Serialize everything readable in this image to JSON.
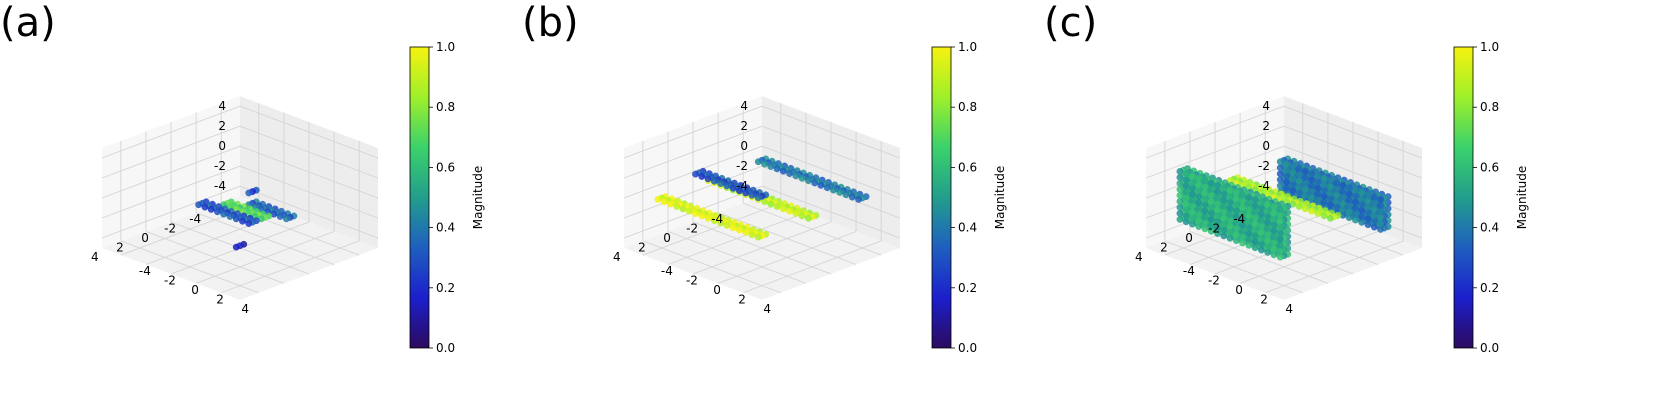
{
  "panels": [
    {
      "label": "(a)"
    },
    {
      "label": "(b)"
    },
    {
      "label": "(c)"
    }
  ],
  "colorbar": {
    "label": "Magnitude",
    "ticks": [
      "0.0",
      "0.2",
      "0.4",
      "0.6",
      "0.8",
      "1.0"
    ],
    "colors": [
      "#2c0a5e",
      "#1b1fcc",
      "#1f5fbf",
      "#229e8c",
      "#3bd16b",
      "#9ef02a",
      "#f6f20f"
    ]
  },
  "chart_data": [
    {
      "type": "scatter",
      "title": "(a)",
      "xlim": [
        -5,
        5
      ],
      "ylim": [
        -5,
        5
      ],
      "zlim": [
        -5,
        5
      ],
      "x_ticks": [
        "-4",
        "-2",
        "0",
        "2",
        "4"
      ],
      "y_ticks": [
        "-4",
        "-2",
        "0",
        "2",
        "4"
      ],
      "z_ticks": [
        "4",
        "2",
        "0",
        "-2",
        "-4"
      ],
      "colorbar_label": "Magnitude",
      "clim": [
        0,
        1
      ],
      "series": [
        {
          "x": 1,
          "y_range": [
            -2,
            2
          ],
          "z": -1,
          "magnitude": 0.3
        },
        {
          "x": 0,
          "y_range": [
            -1,
            2
          ],
          "z": -1,
          "magnitude": 0.7
        },
        {
          "x": -1,
          "y_range": [
            0,
            3
          ],
          "z": -1,
          "magnitude": 0.35
        },
        {
          "x": 2,
          "y": 3,
          "z": 3,
          "magnitude": 0.25
        },
        {
          "x": 4,
          "y": 4,
          "z": -1,
          "magnitude": 0.15
        }
      ],
      "grid": true,
      "legend": "none"
    },
    {
      "type": "scatter",
      "title": "(b)",
      "xlim": [
        -5,
        5
      ],
      "ylim": [
        -5,
        5
      ],
      "zlim": [
        -5,
        5
      ],
      "x_ticks": [
        "-4",
        "-2",
        "0",
        "2",
        "4"
      ],
      "y_ticks": [
        "-4",
        "-2",
        "0",
        "2",
        "4"
      ],
      "z_ticks": [
        "4",
        "2",
        "0",
        "-2",
        "-4"
      ],
      "colorbar_label": "Magnitude",
      "clim": [
        0,
        1
      ],
      "series": [
        {
          "x": 4,
          "y_range": [
            -4,
            4
          ],
          "z": 0,
          "magnitude": 0.95
        },
        {
          "x": 0,
          "y_range": [
            -4,
            4
          ],
          "z": 0,
          "magnitude": 0.9
        },
        {
          "x": -4,
          "y_range": [
            -4,
            4
          ],
          "z": 0,
          "magnitude": 0.4
        },
        {
          "x": 3,
          "y_range": [
            -2,
            3
          ],
          "z": 3,
          "magnitude": 0.3
        }
      ],
      "grid": true,
      "legend": "none"
    },
    {
      "type": "scatter",
      "title": "(c)",
      "xlim": [
        -5,
        5
      ],
      "ylim": [
        -5,
        5
      ],
      "zlim": [
        -5,
        5
      ],
      "x_ticks": [
        "-4",
        "-2",
        "0",
        "2",
        "4"
      ],
      "y_ticks": [
        "-4",
        "-2",
        "0",
        "2",
        "4"
      ],
      "z_ticks": [
        "4",
        "2",
        "0",
        "-2",
        "-4"
      ],
      "colorbar_label": "Magnitude",
      "clim": [
        0,
        1
      ],
      "series": [
        {
          "x": 4,
          "y_range": [
            -4,
            4
          ],
          "z_range": [
            -2,
            3
          ],
          "magnitude": 0.55
        },
        {
          "x": 0,
          "y_range": [
            -4,
            4
          ],
          "z": 0,
          "magnitude": 0.85
        },
        {
          "x": -4,
          "y_range": [
            -4,
            4
          ],
          "z_range": [
            -3,
            0
          ],
          "magnitude": 0.4
        }
      ],
      "grid": true,
      "legend": "none"
    }
  ]
}
